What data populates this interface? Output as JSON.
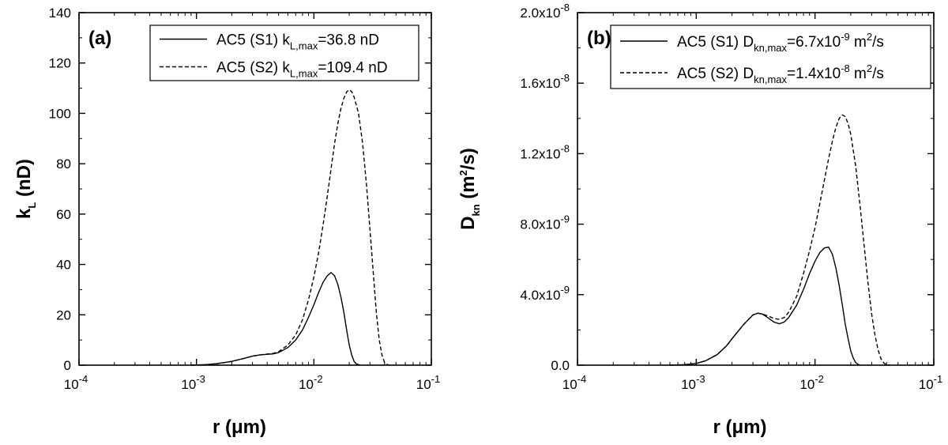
{
  "chart_data": [
    {
      "type": "line",
      "panel_label": "(a)",
      "xlabel": "r  (μm)",
      "ylabel": {
        "main": "k",
        "sub": "L",
        "rest": " (nD)"
      },
      "xscale": "log",
      "xlim": [
        0.0001,
        0.1
      ],
      "ylim": [
        0,
        140
      ],
      "x_ticks": [
        {
          "base": "10",
          "exp": "-4"
        },
        {
          "base": "10",
          "exp": "-3"
        },
        {
          "base": "10",
          "exp": "-2"
        },
        {
          "base": "10",
          "exp": "-1"
        }
      ],
      "y_ticks": [
        "0",
        "20",
        "40",
        "60",
        "80",
        "100",
        "120",
        "140"
      ],
      "grid": false,
      "legend_position": "top-right",
      "legend": [
        {
          "style": "solid",
          "parts": [
            {
              "t": "AC5 (S1) k"
            },
            {
              "t": "L,max",
              "sub": true
            },
            {
              "t": "=36.8 nD"
            }
          ]
        },
        {
          "style": "dashed",
          "parts": [
            {
              "t": "AC5 (S2) k"
            },
            {
              "t": "L,max",
              "sub": true
            },
            {
              "t": "=109.4 nD"
            }
          ]
        }
      ],
      "series": [
        {
          "style": "solid",
          "x": [
            0.0009,
            0.0012,
            0.0015,
            0.002,
            0.0025,
            0.003,
            0.0035,
            0.004,
            0.0045,
            0.005,
            0.006,
            0.007,
            0.008,
            0.009,
            0.01,
            0.011,
            0.012,
            0.013,
            0.014,
            0.015,
            0.016,
            0.017,
            0.018,
            0.019,
            0.02,
            0.021,
            0.022,
            0.023,
            0.025
          ],
          "y": [
            0,
            0.2,
            0.6,
            1.5,
            2.6,
            3.6,
            4.1,
            4.3,
            4.5,
            5,
            7,
            10,
            14,
            19,
            24,
            29,
            33,
            35.5,
            36.8,
            35.5,
            32,
            27,
            21,
            14,
            8,
            4,
            1.5,
            0.5,
            0
          ]
        },
        {
          "style": "dashed",
          "x": [
            0.0009,
            0.0012,
            0.0015,
            0.002,
            0.0025,
            0.003,
            0.0035,
            0.004,
            0.0045,
            0.005,
            0.006,
            0.007,
            0.008,
            0.009,
            0.01,
            0.011,
            0.012,
            0.013,
            0.014,
            0.015,
            0.016,
            0.017,
            0.018,
            0.019,
            0.02,
            0.021,
            0.022,
            0.024,
            0.026,
            0.028,
            0.03,
            0.032,
            0.034,
            0.036,
            0.038,
            0.04,
            0.042,
            0.044
          ],
          "y": [
            0,
            0.2,
            0.6,
            1.5,
            2.6,
            3.6,
            4.1,
            4.4,
            4.7,
            5.3,
            8,
            12,
            18,
            26,
            35,
            45,
            56,
            67,
            78,
            88,
            96,
            102,
            106,
            108.5,
            109.4,
            108.6,
            106.5,
            100,
            88,
            72,
            54,
            37,
            21,
            10,
            4,
            1,
            0.3,
            0
          ]
        }
      ]
    },
    {
      "type": "line",
      "panel_label": "(b)",
      "xlabel": "r  (μm)",
      "ylabel": {
        "main": "D",
        "sub": "kn",
        "rest": " (m",
        "sup": "2",
        "tail": "/s)"
      },
      "xscale": "log",
      "xlim": [
        0.0001,
        0.1
      ],
      "ylim": [
        0,
        2e-08
      ],
      "x_ticks": [
        {
          "base": "10",
          "exp": "-4"
        },
        {
          "base": "10",
          "exp": "-3"
        },
        {
          "base": "10",
          "exp": "-2"
        },
        {
          "base": "10",
          "exp": "-1"
        }
      ],
      "y_ticks": [
        {
          "value": 0,
          "base": "0.0",
          "exp": ""
        },
        {
          "value": 4e-09,
          "base": "4.0x10",
          "exp": "-9"
        },
        {
          "value": 8e-09,
          "base": "8.0x10",
          "exp": "-9"
        },
        {
          "value": 1.2e-08,
          "base": "1.2x10",
          "exp": "-8"
        },
        {
          "value": 1.6e-08,
          "base": "1.6x10",
          "exp": "-8"
        },
        {
          "value": 2e-08,
          "base": "2.0x10",
          "exp": "-8"
        }
      ],
      "grid": false,
      "legend_position": "top-right",
      "legend": [
        {
          "style": "solid",
          "parts": [
            {
              "t": "AC5 (S1) D"
            },
            {
              "t": "kn,max",
              "sub": true
            },
            {
              "t": "=6.7x10"
            },
            {
              "t": "-9",
              "sup": true
            },
            {
              "t": " m"
            },
            {
              "t": "2",
              "sup": true
            },
            {
              "t": "/s"
            }
          ]
        },
        {
          "style": "dashed",
          "parts": [
            {
              "t": "AC5 (S2) D"
            },
            {
              "t": "kn,max",
              "sub": true
            },
            {
              "t": "=1.4x10"
            },
            {
              "t": "-8",
              "sup": true
            },
            {
              "t": " m"
            },
            {
              "t": "2",
              "sup": true
            },
            {
              "t": "/s"
            }
          ]
        }
      ],
      "series": [
        {
          "style": "solid",
          "x": [
            0.0006,
            0.0008,
            0.001,
            0.0012,
            0.0015,
            0.0018,
            0.002,
            0.0025,
            0.003,
            0.0033,
            0.0036,
            0.004,
            0.0045,
            0.005,
            0.0055,
            0.006,
            0.007,
            0.008,
            0.009,
            0.01,
            0.011,
            0.012,
            0.013,
            0.014,
            0.015,
            0.016,
            0.017,
            0.018,
            0.019,
            0.02,
            0.021,
            0.022,
            0.023,
            0.024
          ],
          "y": [
            0,
            3e-11,
            1e-10,
            2.5e-10,
            6e-10,
            1.1e-09,
            1.5e-09,
            2.3e-09,
            2.85e-09,
            2.95e-09,
            2.9e-09,
            2.7e-09,
            2.45e-09,
            2.35e-09,
            2.45e-09,
            2.7e-09,
            3.4e-09,
            4.3e-09,
            5.2e-09,
            5.9e-09,
            6.4e-09,
            6.65e-09,
            6.7e-09,
            6.3e-09,
            5.5e-09,
            4.5e-09,
            3.4e-09,
            2.3e-09,
            1.5e-09,
            8e-10,
            4e-10,
            1.5e-10,
            5e-11,
            0
          ]
        },
        {
          "style": "dashed",
          "x": [
            0.0006,
            0.0008,
            0.001,
            0.0012,
            0.0015,
            0.0018,
            0.002,
            0.0025,
            0.003,
            0.0033,
            0.0036,
            0.004,
            0.0045,
            0.005,
            0.0055,
            0.006,
            0.007,
            0.008,
            0.009,
            0.01,
            0.011,
            0.012,
            0.013,
            0.014,
            0.015,
            0.016,
            0.017,
            0.018,
            0.019,
            0.02,
            0.022,
            0.024,
            0.026,
            0.028,
            0.03,
            0.032,
            0.034,
            0.036,
            0.038,
            0.04,
            0.043
          ],
          "y": [
            0,
            3e-11,
            1e-10,
            2.5e-10,
            6e-10,
            1.1e-09,
            1.5e-09,
            2.3e-09,
            2.85e-09,
            2.95e-09,
            2.9e-09,
            2.8e-09,
            2.65e-09,
            2.6e-09,
            2.7e-09,
            3e-09,
            3.9e-09,
            5.2e-09,
            6.5e-09,
            7.8e-09,
            9.2e-09,
            1.05e-08,
            1.17e-08,
            1.27e-08,
            1.35e-08,
            1.4e-08,
            1.42e-08,
            1.41e-08,
            1.37e-08,
            1.31e-08,
            1.13e-08,
            9e-09,
            6.7e-09,
            4.6e-09,
            2.9e-09,
            1.7e-09,
            8.5e-10,
            3.5e-10,
            1.2e-10,
            3e-11,
            0
          ]
        }
      ]
    }
  ]
}
